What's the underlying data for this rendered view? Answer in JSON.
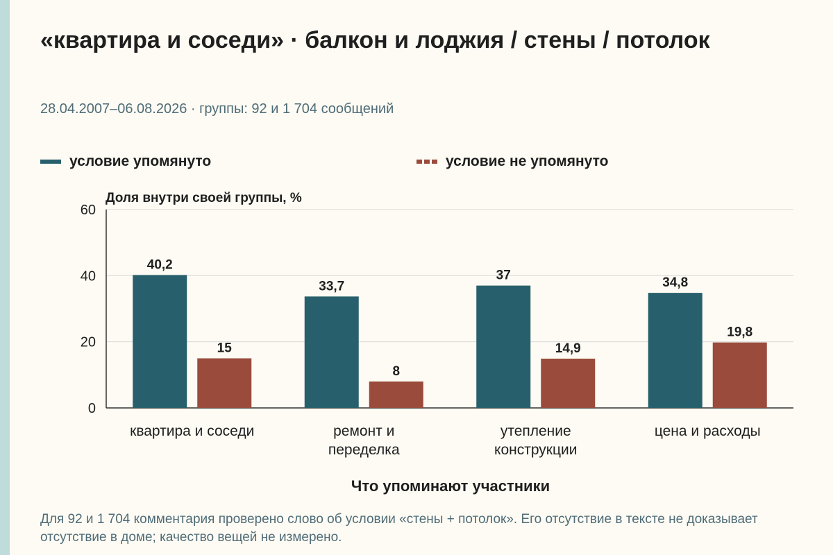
{
  "header": {
    "title": "«квартира и соседи» · балкон и лоджия / стены / потолок",
    "subtitle": "28.04.2007–06.08.2026 · группы: 92 и 1 704 сообщений"
  },
  "footnote": "Для 92 и 1 704 комментария проверено слово об условии «стены + потолок». Его отсутствие в тексте не доказывает отсутствие в доме; качество вещей не измерено.",
  "colors": {
    "background": "#fdfbf3",
    "edge_strip": "#bfdcdb",
    "series_mentioned": "#27606c",
    "series_not_mentioned": "#9a4b3c",
    "grid": "#d9d9d9",
    "axis": "#333333"
  },
  "chart_data": {
    "type": "bar",
    "ylabel": "Доля внутри своей группы, %",
    "xlabel": "Что упоминают участники",
    "ylim": [
      0,
      60
    ],
    "yticks": [
      "0",
      "20",
      "40",
      "60"
    ],
    "grid": true,
    "legend_position": "top-left",
    "categories": [
      [
        "квартира и соседи"
      ],
      [
        "ремонт и",
        "переделка"
      ],
      [
        "утепление",
        "конструкции"
      ],
      [
        "цена и расходы"
      ]
    ],
    "series": [
      {
        "name": "условие упомянуто",
        "values": [
          40.2,
          33.7,
          37,
          34.8
        ],
        "labels": [
          "40,2",
          "33,7",
          "37",
          "34,8"
        ]
      },
      {
        "name": "условие не упомянуто",
        "values": [
          15,
          8,
          14.9,
          19.8
        ],
        "labels": [
          "15",
          "8",
          "14,9",
          "19,8"
        ]
      }
    ]
  }
}
